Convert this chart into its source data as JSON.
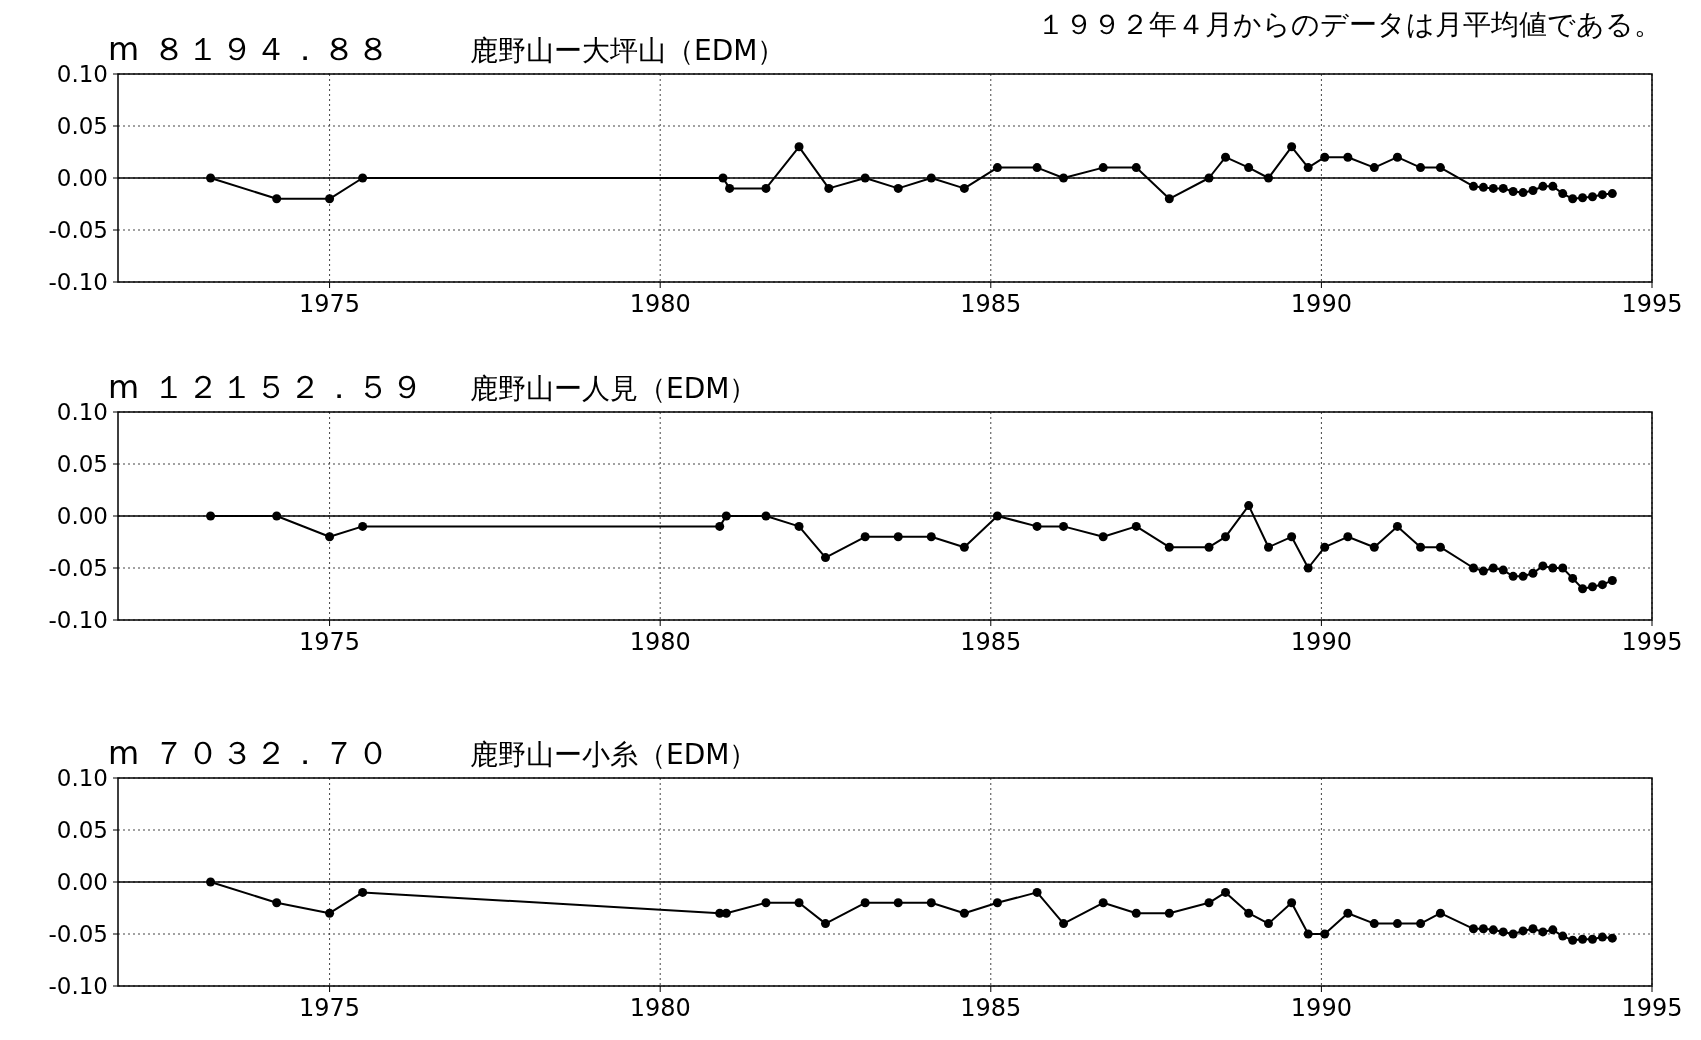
{
  "chart_data": [
    {
      "type": "line",
      "title": "m ８１９４．８８",
      "subtitle": "鹿野山ー大坪山（EDM）",
      "annotations": [
        "１９９２年４月からのデータは月平均値である。"
      ],
      "x": [
        1973.2,
        1974.2,
        1975.0,
        1975.5,
        1980.95,
        1981.05,
        1981.6,
        1982.1,
        1982.55,
        1983.1,
        1983.6,
        1984.1,
        1984.6,
        1985.1,
        1985.7,
        1986.1,
        1986.7,
        1987.2,
        1987.7,
        1988.3,
        1988.55,
        1988.9,
        1989.2,
        1989.55,
        1989.8,
        1990.05,
        1990.4,
        1990.8,
        1991.15,
        1991.5,
        1991.8,
        1992.3,
        1992.45,
        1992.6,
        1992.75,
        1992.9,
        1993.05,
        1993.2,
        1993.35,
        1993.5,
        1993.65,
        1993.8,
        1993.95,
        1994.1,
        1994.25,
        1994.4
      ],
      "series": [
        {
          "color": "#000000",
          "values": [
            0,
            -0.02,
            -0.02,
            0,
            0,
            -0.01,
            -0.01,
            0.03,
            -0.01,
            0,
            -0.01,
            0,
            -0.01,
            0.01,
            0.01,
            0,
            0.01,
            0.01,
            -0.02,
            0,
            0.02,
            0.01,
            0,
            0.03,
            0.01,
            0.02,
            0.02,
            0.01,
            0.02,
            0.01,
            0.01,
            -0.008,
            -0.009,
            -0.01,
            -0.01,
            -0.013,
            -0.014,
            -0.012,
            -0.008,
            -0.008,
            -0.015,
            -0.02,
            -0.019,
            -0.018,
            -0.016,
            -0.015
          ]
        }
      ],
      "xlim": [
        1971.8,
        1995
      ],
      "xticks": [
        1975,
        1980,
        1985,
        1990,
        1995
      ],
      "ylim": [
        -0.1,
        0.1
      ],
      "yticks": [
        {
          "value": 0.1,
          "label": "0.10"
        },
        {
          "value": 0.05,
          "label": "0.05"
        },
        {
          "value": 0,
          "label": "0.00"
        },
        {
          "value": -0.05,
          "label": "-0.05"
        },
        {
          "value": -0.1,
          "label": "-0.10"
        }
      ],
      "ref_lines": [
        {
          "axis": "y",
          "value": 0,
          "color": "#000000",
          "line_style": "solid"
        }
      ],
      "grid": true,
      "marker": "circle",
      "line_style": "solid"
    },
    {
      "type": "line",
      "title": "m １２１５２．５９",
      "subtitle": "鹿野山ー人見（EDM）",
      "x": [
        1973.2,
        1974.2,
        1975.0,
        1975.5,
        1980.9,
        1981.0,
        1981.6,
        1982.1,
        1982.5,
        1983.1,
        1983.6,
        1984.1,
        1984.6,
        1985.1,
        1985.7,
        1986.1,
        1986.7,
        1987.2,
        1987.7,
        1988.3,
        1988.55,
        1988.9,
        1989.2,
        1989.55,
        1989.8,
        1990.05,
        1990.4,
        1990.8,
        1991.15,
        1991.5,
        1991.8,
        1992.3,
        1992.45,
        1992.6,
        1992.75,
        1992.9,
        1993.05,
        1993.2,
        1993.35,
        1993.5,
        1993.65,
        1993.8,
        1993.95,
        1994.1,
        1994.25,
        1994.4
      ],
      "series": [
        {
          "color": "#000000",
          "values": [
            0,
            0,
            -0.02,
            -0.01,
            -0.01,
            0,
            0,
            -0.01,
            -0.04,
            -0.02,
            -0.02,
            -0.02,
            -0.03,
            0,
            -0.01,
            -0.01,
            -0.02,
            -0.01,
            -0.03,
            -0.03,
            -0.02,
            0.01,
            -0.03,
            -0.02,
            -0.05,
            -0.03,
            -0.02,
            -0.03,
            -0.01,
            -0.03,
            -0.03,
            -0.05,
            -0.053,
            -0.05,
            -0.052,
            -0.058,
            -0.058,
            -0.055,
            -0.048,
            -0.05,
            -0.05,
            -0.06,
            -0.07,
            -0.068,
            -0.066,
            -0.062
          ]
        }
      ],
      "xlim": [
        1971.8,
        1995
      ],
      "xticks": [
        1975,
        1980,
        1985,
        1990,
        1995
      ],
      "ylim": [
        -0.1,
        0.1
      ],
      "yticks": [
        {
          "value": 0.1,
          "label": "0.10"
        },
        {
          "value": 0.05,
          "label": "0.05"
        },
        {
          "value": 0,
          "label": "0.00"
        },
        {
          "value": -0.05,
          "label": "-0.05"
        },
        {
          "value": -0.1,
          "label": "-0.10"
        }
      ],
      "ref_lines": [
        {
          "axis": "y",
          "value": 0,
          "color": "#000000",
          "line_style": "solid"
        }
      ],
      "grid": true,
      "marker": "circle",
      "line_style": "solid"
    },
    {
      "type": "line",
      "title": "m ７０３２．７０",
      "subtitle": "鹿野山ー小糸（EDM）",
      "x": [
        1973.2,
        1974.2,
        1975.0,
        1975.5,
        1980.9,
        1981.0,
        1981.6,
        1982.1,
        1982.5,
        1983.1,
        1983.6,
        1984.1,
        1984.6,
        1985.1,
        1985.7,
        1986.1,
        1986.7,
        1987.2,
        1987.7,
        1988.3,
        1988.55,
        1988.9,
        1989.2,
        1989.55,
        1989.8,
        1990.05,
        1990.4,
        1990.8,
        1991.15,
        1991.5,
        1991.8,
        1992.3,
        1992.45,
        1992.6,
        1992.75,
        1992.9,
        1993.05,
        1993.2,
        1993.35,
        1993.5,
        1993.65,
        1993.8,
        1993.95,
        1994.1,
        1994.25,
        1994.4
      ],
      "series": [
        {
          "color": "#000000",
          "values": [
            0,
            -0.02,
            -0.03,
            -0.01,
            -0.03,
            -0.03,
            -0.02,
            -0.02,
            -0.04,
            -0.02,
            -0.02,
            -0.02,
            -0.03,
            -0.02,
            -0.01,
            -0.04,
            -0.02,
            -0.03,
            -0.03,
            -0.02,
            -0.01,
            -0.03,
            -0.04,
            -0.02,
            -0.05,
            -0.05,
            -0.03,
            -0.04,
            -0.04,
            -0.04,
            -0.03,
            -0.045,
            -0.045,
            -0.046,
            -0.048,
            -0.05,
            -0.047,
            -0.045,
            -0.048,
            -0.046,
            -0.052,
            -0.056,
            -0.055,
            -0.055,
            -0.053,
            -0.054
          ]
        }
      ],
      "xlim": [
        1971.8,
        1995
      ],
      "xticks": [
        1975,
        1980,
        1985,
        1990,
        1995
      ],
      "ylim": [
        -0.1,
        0.1
      ],
      "yticks": [
        {
          "value": 0.1,
          "label": "0.10"
        },
        {
          "value": 0.05,
          "label": "0.05"
        },
        {
          "value": 0,
          "label": "0.00"
        },
        {
          "value": -0.05,
          "label": "-0.05"
        },
        {
          "value": -0.1,
          "label": "-0.10"
        }
      ],
      "ref_lines": [
        {
          "axis": "y",
          "value": 0,
          "color": "#000000",
          "line_style": "solid"
        }
      ],
      "grid": true,
      "marker": "circle",
      "line_style": "solid"
    }
  ]
}
